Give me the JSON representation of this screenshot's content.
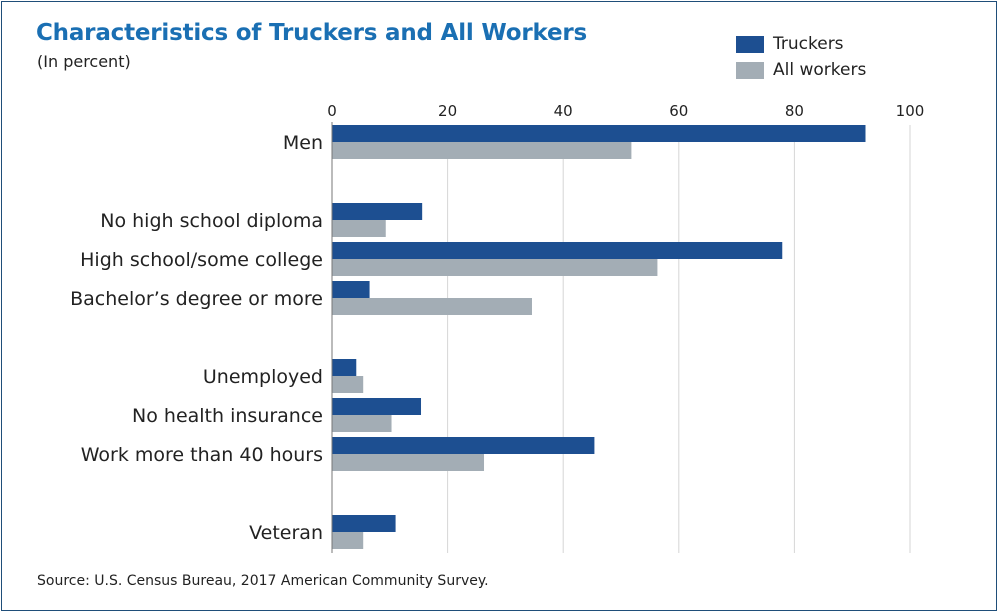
{
  "chart_data": {
    "type": "bar",
    "orientation": "horizontal",
    "title": "Characteristics of Truckers and All Workers",
    "subtitle": "(In percent)",
    "source": "Source: U.S. Census Bureau, 2017 American Community Survey.",
    "xlim": [
      0,
      100
    ],
    "ticks": [
      0,
      20,
      40,
      60,
      80,
      100
    ],
    "grid": true,
    "legend_position": "top-right",
    "categories": [
      "Men",
      "No high school diploma",
      "High school/some college",
      "Bachelor’s degree or more",
      "Unemployed",
      "No health insurance",
      "Work more than 40 hours",
      "Veteran"
    ],
    "groups": [
      [
        0
      ],
      [
        1,
        2,
        3
      ],
      [
        4,
        5,
        6
      ],
      [
        7
      ]
    ],
    "series": [
      {
        "name": "Truckers",
        "color": "#1d4f91",
        "values": [
          92.3,
          15.6,
          77.9,
          6.5,
          4.2,
          15.4,
          45.4,
          11.0
        ]
      },
      {
        "name": "All workers",
        "color": "#a3adb5",
        "values": [
          51.8,
          9.3,
          56.3,
          34.6,
          5.4,
          10.3,
          26.3,
          5.4
        ]
      }
    ]
  }
}
